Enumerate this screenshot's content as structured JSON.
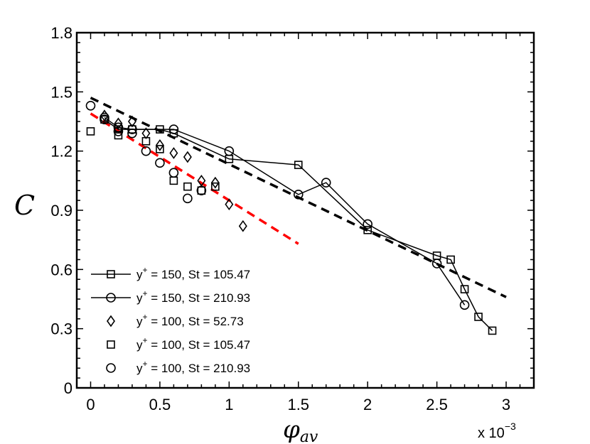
{
  "chart_data": {
    "type": "scatter",
    "title": "",
    "xlabel": "φ",
    "xlabel_sub": "av",
    "ylabel": "C",
    "xlim": [
      -0.1,
      3.2
    ],
    "ylim": [
      0,
      1.8
    ],
    "xticks": [
      0,
      0.5,
      1,
      1.5,
      2,
      2.5,
      3
    ],
    "xtick_labels": [
      "0",
      "0.5",
      "1",
      "1.5",
      "2",
      "2.5",
      "3"
    ],
    "yticks": [
      0,
      0.3,
      0.6,
      0.9,
      1.2,
      1.5,
      1.8
    ],
    "ytick_labels": [
      "0",
      "0.3",
      "0.6",
      "0.9",
      "1.2",
      "1.5",
      "1.8"
    ],
    "x_scale_prefix": "x 10",
    "x_scale_exponent": "−3",
    "grid": false,
    "legend_position": "bottom-left",
    "series": [
      {
        "name": "y+ = 150, St = 105.47",
        "legend_base": "y",
        "legend_sup": "+",
        "legend_rest": " = 150, St = 105.47",
        "marker": "square",
        "line": true,
        "x": [
          0.1,
          0.2,
          0.3,
          0.5,
          0.6,
          1.0,
          1.5,
          2.0,
          2.5,
          2.6,
          2.7,
          2.8,
          2.9
        ],
        "y": [
          1.36,
          1.31,
          1.31,
          1.31,
          1.29,
          1.16,
          1.13,
          0.8,
          0.67,
          0.65,
          0.5,
          0.36,
          0.29
        ]
      },
      {
        "name": "y+ = 150, St = 210.93",
        "legend_base": "y",
        "legend_sup": "+",
        "legend_rest": " = 150, St = 210.93",
        "marker": "circle",
        "line": true,
        "x": [
          0.1,
          0.2,
          0.3,
          0.6,
          1.0,
          1.5,
          1.7,
          2.0,
          2.5,
          2.7
        ],
        "y": [
          1.37,
          1.32,
          1.31,
          1.31,
          1.2,
          0.98,
          1.04,
          0.83,
          0.63,
          0.42
        ]
      },
      {
        "name": "y+ = 100, St = 52.73",
        "legend_base": "y",
        "legend_sup": "+",
        "legend_rest": " = 100, St = 52.73",
        "marker": "diamond",
        "line": false,
        "x": [
          0.1,
          0.2,
          0.3,
          0.4,
          0.5,
          0.6,
          0.7,
          0.8,
          0.9,
          1.0,
          1.1
        ],
        "y": [
          1.38,
          1.34,
          1.35,
          1.29,
          1.23,
          1.19,
          1.17,
          1.05,
          1.04,
          0.93,
          0.82
        ]
      },
      {
        "name": "y+ = 100, St = 105.47",
        "legend_base": "y",
        "legend_sup": "+",
        "legend_rest": " = 100, St = 105.47",
        "marker": "square",
        "line": false,
        "x": [
          0.0,
          0.2,
          0.4,
          0.5,
          0.6,
          0.7,
          0.8,
          0.9
        ],
        "y": [
          1.3,
          1.28,
          1.25,
          1.21,
          1.05,
          1.02,
          1.0,
          1.02
        ]
      },
      {
        "name": "y+ = 100, St = 210.93",
        "legend_base": "y",
        "legend_sup": "+",
        "legend_rest": " = 100, St = 210.93",
        "marker": "circle",
        "line": false,
        "x": [
          0.0,
          0.1,
          0.2,
          0.3,
          0.4,
          0.5,
          0.6,
          0.7,
          0.8
        ],
        "y": [
          1.43,
          1.36,
          1.3,
          1.29,
          1.2,
          1.14,
          1.09,
          0.96,
          1.0
        ]
      }
    ],
    "fit_lines": [
      {
        "name": "black dashed fit",
        "color": "#000000",
        "x": [
          0.0,
          3.0
        ],
        "y": [
          1.47,
          0.46
        ]
      },
      {
        "name": "red dashed fit",
        "color": "#ff0000",
        "x": [
          0.0,
          1.5
        ],
        "y": [
          1.39,
          0.73
        ]
      }
    ]
  }
}
